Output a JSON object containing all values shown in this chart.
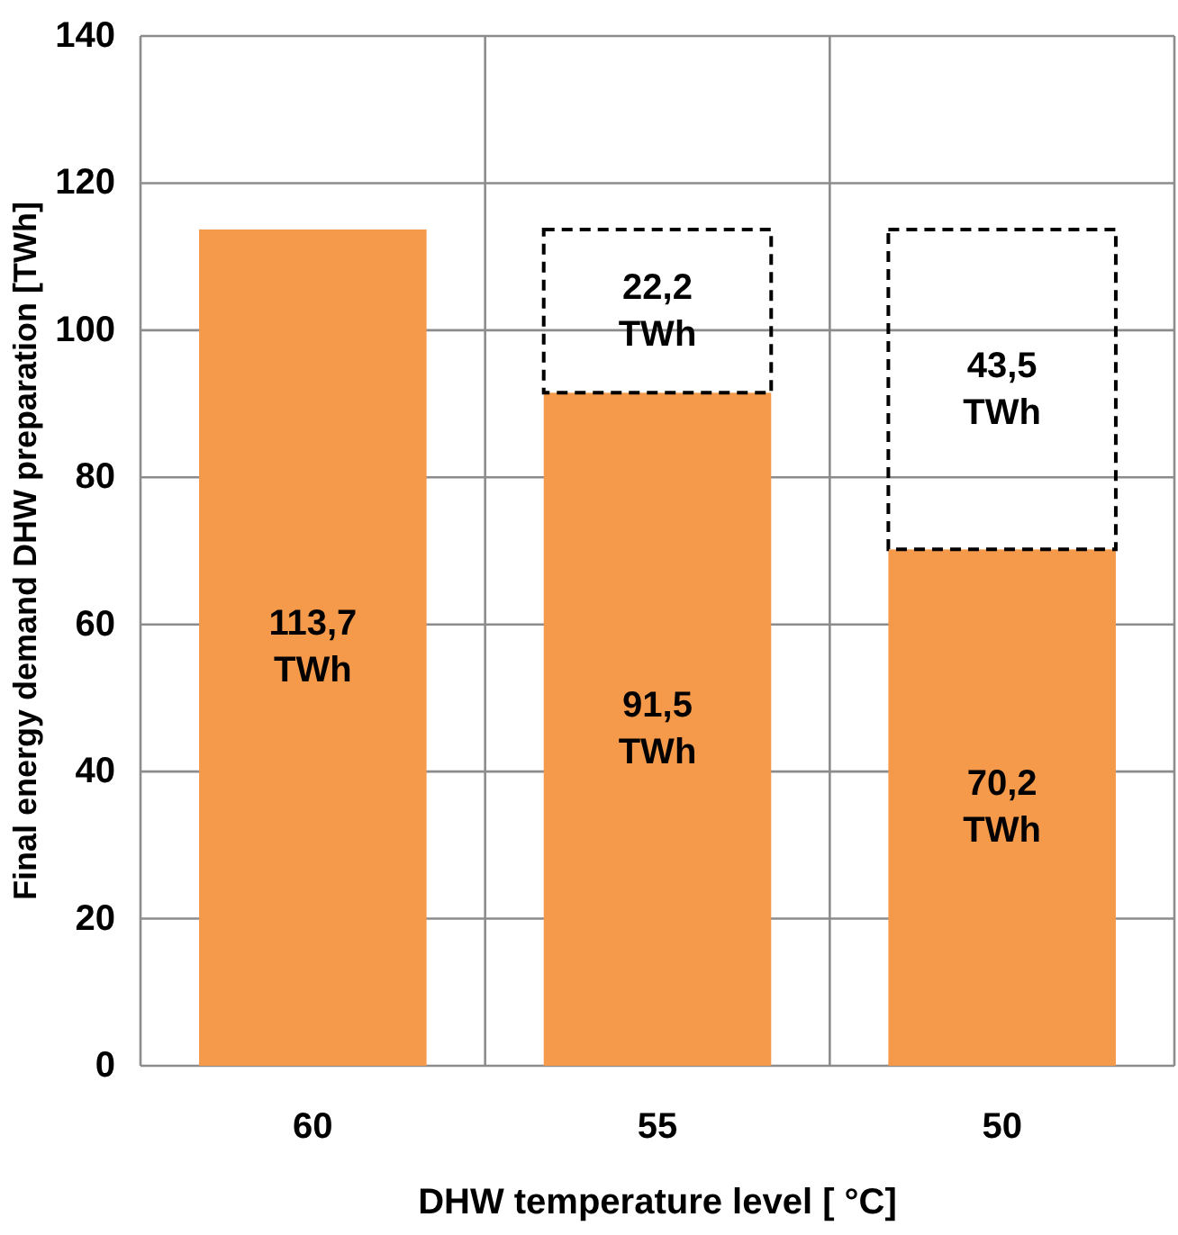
{
  "chart_data": {
    "type": "bar",
    "xlabel": "DHW temperature level [ °C]",
    "ylabel": "Final energy demand  DHW preparation [TWh]",
    "categories": [
      "60",
      "55",
      "50"
    ],
    "stacked": true,
    "ylim": [
      0,
      140
    ],
    "yticks": [
      0,
      20,
      40,
      60,
      80,
      100,
      120,
      140
    ],
    "grid": true,
    "series": [
      {
        "color": "#f59a4a",
        "values": [
          113.7,
          91.5,
          70.2
        ],
        "value_labels": [
          "113,7 TWh",
          "91,5 TWh",
          "70,2 TWh"
        ]
      },
      {
        "color": "#000000",
        "line_style": "dashed",
        "values": [
          null,
          22.2,
          43.5
        ],
        "value_labels": [
          null,
          "22,2 TWh",
          "43,5 TWh"
        ]
      }
    ]
  }
}
